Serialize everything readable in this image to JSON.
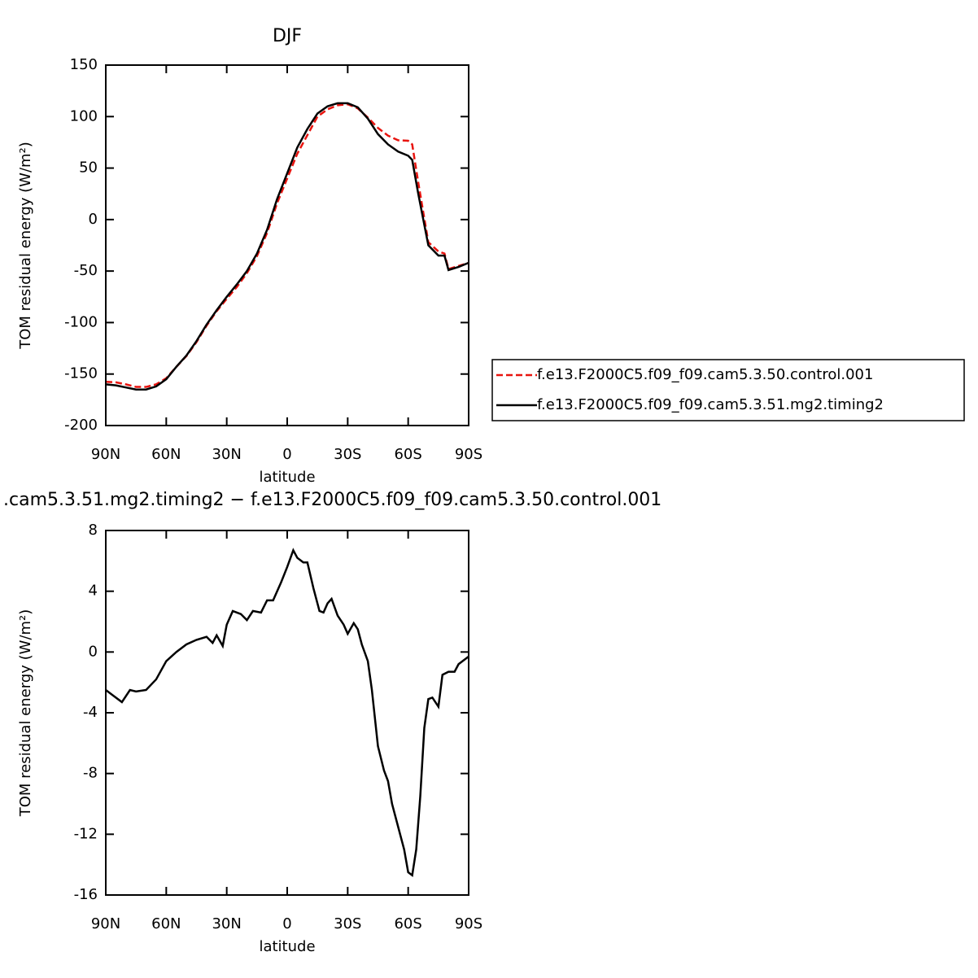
{
  "chart_data": [
    {
      "type": "line",
      "title": "DJF",
      "x_label": "latitude",
      "y_label": "TOM residual energy (W/m²)",
      "x": [
        90,
        85,
        80,
        75,
        70,
        65,
        60,
        55,
        50,
        45,
        40,
        35,
        30,
        25,
        20,
        15,
        10,
        5,
        0,
        -5,
        -10,
        -15,
        -20,
        -25,
        -30,
        -35,
        -40,
        -45,
        -50,
        -55,
        -60,
        -62,
        -65,
        -70,
        -75,
        -78,
        -80,
        -85,
        -90
      ],
      "series": [
        {
          "name": "f.e13.F2000C5.f09_f09.cam5.3.50.control.001",
          "color": "#e8140f",
          "dash": true,
          "values": [
            -157.5,
            -158,
            -160,
            -162.5,
            -162.5,
            -160,
            -154,
            -143,
            -132.5,
            -119,
            -103,
            -89,
            -77,
            -65.5,
            -52,
            -35.5,
            -13,
            16,
            40,
            64,
            82,
            100,
            107,
            111,
            112,
            108,
            99,
            89,
            81.5,
            77,
            76.5,
            73,
            36,
            -22,
            -31,
            -33,
            -48,
            -45,
            -42
          ]
        },
        {
          "name": "f.e13.F2000C5.f09_f09.cam5.3.51.mg2.timing2",
          "color": "#000000",
          "dash": false,
          "values": [
            -160,
            -161,
            -163,
            -165,
            -165,
            -162,
            -155,
            -143,
            -132,
            -118,
            -102,
            -88,
            -75,
            -63,
            -50,
            -33,
            -10,
            20,
            45,
            70,
            88,
            103,
            110,
            113,
            113,
            109,
            98,
            83,
            73,
            66,
            62,
            58,
            25,
            -25,
            -35,
            -35,
            -49,
            -46,
            -42
          ]
        }
      ],
      "xlim": [
        90,
        -90
      ],
      "xticks": [
        {
          "value": 90,
          "label": "90N"
        },
        {
          "value": 60,
          "label": "60N"
        },
        {
          "value": 30,
          "label": "30N"
        },
        0,
        {
          "value": -30,
          "label": "30S"
        },
        {
          "value": -60,
          "label": "60S"
        },
        {
          "value": -90,
          "label": "90S"
        }
      ],
      "ylim": [
        -200,
        150
      ],
      "yticks": [
        -200,
        -150,
        -100,
        -50,
        0,
        50,
        100,
        150
      ],
      "legend": "right"
    },
    {
      "type": "line",
      "title": ".cam5.3.51.mg2.timing2 − f.e13.F2000C5.f09_f09.cam5.3.50.control.001",
      "x_label": "latitude",
      "y_label": "TOM residual energy (W/m²)",
      "x": [
        90,
        87,
        82,
        78,
        75,
        70,
        65,
        60,
        55,
        50,
        45,
        40,
        37,
        35,
        32,
        30,
        27,
        23,
        20,
        17,
        13,
        10,
        7,
        3,
        0,
        -3,
        -5,
        -8,
        -10,
        -13,
        -16,
        -18,
        -20,
        -22,
        -25,
        -28,
        -30,
        -33,
        -35,
        -37,
        -40,
        -42,
        -45,
        -48,
        -50,
        -52,
        -55,
        -58,
        -60,
        -62,
        -64,
        -66,
        -68,
        -70,
        -72,
        -75,
        -77,
        -80,
        -83,
        -85,
        -88,
        -90
      ],
      "series": [
        {
          "color": "#000000",
          "values": [
            -2.5,
            -2.8,
            -3.3,
            -2.5,
            -2.6,
            -2.5,
            -1.8,
            -0.6,
            0,
            0.5,
            0.8,
            1,
            0.6,
            1.1,
            0.4,
            1.8,
            2.7,
            2.5,
            2.1,
            2.7,
            2.6,
            3.4,
            3.4,
            4.6,
            5.6,
            6.7,
            6.2,
            5.9,
            5.9,
            4.2,
            2.7,
            2.6,
            3.2,
            3.5,
            2.4,
            1.8,
            1.2,
            1.9,
            1.5,
            0.5,
            -0.6,
            -2.5,
            -6.2,
            -7.8,
            -8.5,
            -10,
            -11.5,
            -13,
            -14.5,
            -14.7,
            -13,
            -9.5,
            -5,
            -3.1,
            -3,
            -3.6,
            -1.5,
            -1.3,
            -1.3,
            -0.8,
            -0.5,
            -0.3
          ]
        }
      ],
      "xlim": [
        90,
        -90
      ],
      "xticks": [
        {
          "value": 90,
          "label": "90N"
        },
        {
          "value": 60,
          "label": "60N"
        },
        {
          "value": 30,
          "label": "30N"
        },
        0,
        {
          "value": -30,
          "label": "30S"
        },
        {
          "value": -60,
          "label": "60S"
        },
        {
          "value": -90,
          "label": "90S"
        }
      ],
      "ylim": [
        -16,
        8
      ],
      "yticks": [
        -16,
        -12,
        -8,
        -4,
        0,
        4,
        8
      ]
    }
  ]
}
